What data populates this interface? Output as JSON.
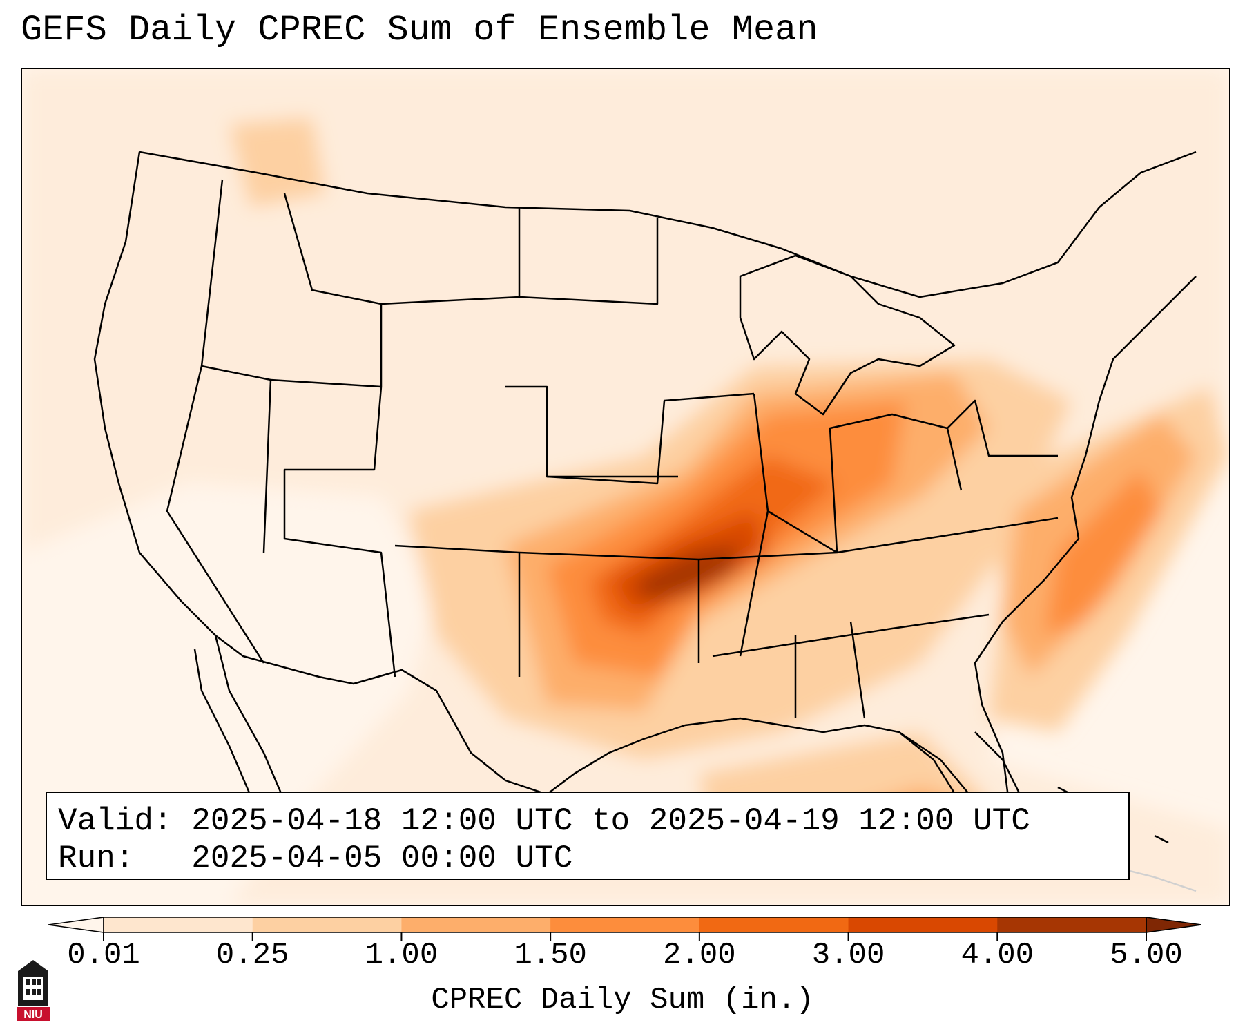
{
  "title": "GEFS Daily CPREC Sum of Ensemble Mean",
  "info": {
    "valid_line": "Valid: 2025-04-18 12:00 UTC to 2025-04-19 12:00 UTC",
    "run_line": "Run:   2025-04-05 00:00 UTC"
  },
  "colorbar": {
    "label": "CPREC Daily Sum (in.)",
    "ticks": [
      "0.01",
      "0.25",
      "1.00",
      "1.50",
      "2.00",
      "3.00",
      "4.00",
      "5.00"
    ],
    "colors": [
      "#fee6ce",
      "#fdd0a2",
      "#fdae6b",
      "#fd8d3c",
      "#f16913",
      "#d94801",
      "#a63603"
    ],
    "under_color": "#fff5eb",
    "over_color": "#7f2704",
    "extend": "both"
  },
  "map": {
    "projection": "Lambert conformal, CONUS",
    "region": "Contiguous United States, southern Canada, northern Mexico, Gulf of Mexico, western Atlantic",
    "max_precip_areas": [
      "southwestern Missouri",
      "northeastern Oklahoma",
      "Arkansas"
    ],
    "heavy_bands": [
      "Ohio Valley",
      "Mid-Atlantic offshore",
      "northern Texas"
    ]
  },
  "logo": {
    "name": "niu-logo",
    "text": "NIU"
  }
}
